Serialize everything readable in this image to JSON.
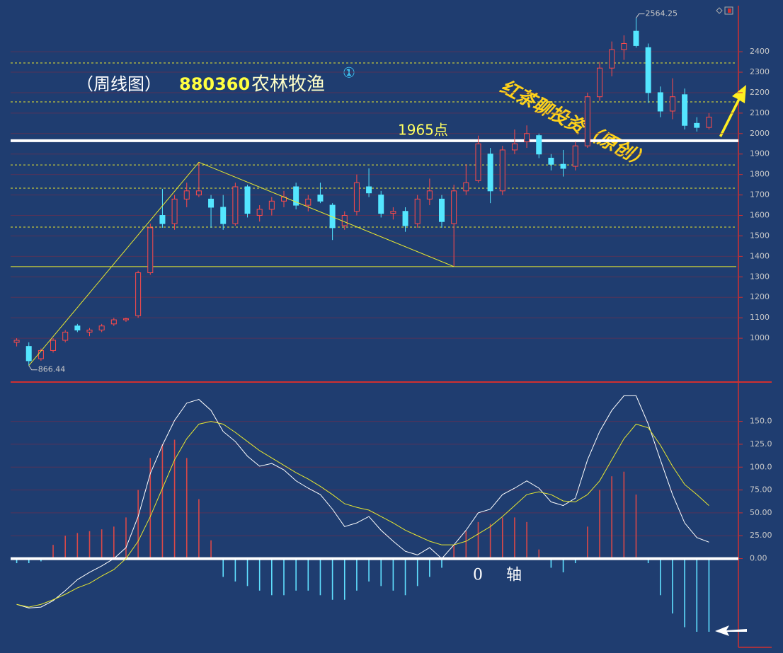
{
  "chart_data": [
    {
      "type": "candlestick",
      "title_prefix": "（周线图）",
      "code": "880360",
      "title": "农林牧渔",
      "marker": "①",
      "annotation": "红茶聊投资（原创）",
      "categories": [
        null,
        null,
        null,
        null,
        null,
        null,
        null,
        null,
        null,
        null,
        null,
        null,
        null,
        null,
        null,
        null,
        null,
        null,
        null,
        null,
        null,
        null,
        null,
        null,
        null,
        null,
        null,
        null,
        null,
        null,
        null,
        null,
        null,
        null,
        null,
        null,
        null,
        null,
        null,
        null,
        null,
        null,
        null,
        null,
        null,
        null,
        null,
        null,
        null,
        null,
        null,
        null,
        null,
        null,
        null,
        null,
        null,
        null
      ],
      "open": [
        980,
        960,
        900,
        940,
        990,
        1060,
        1030,
        1040,
        1070,
        1090,
        1110,
        1320,
        1600,
        1560,
        1680,
        1700,
        1680,
        1640,
        1560,
        1740,
        1600,
        1630,
        1670,
        1740,
        1650,
        1700,
        1650,
        1550,
        1620,
        1740,
        1700,
        1610,
        1620,
        1560,
        1680,
        1680,
        1560,
        1720,
        1770,
        1900,
        1720,
        1920,
        1960,
        1990,
        1880,
        1850,
        1840,
        1940,
        2180,
        2320,
        2410,
        2500,
        2420,
        2200,
        2110,
        2190,
        2050,
        2030
      ],
      "high": [
        1000,
        980,
        950,
        1000,
        1040,
        1070,
        1050,
        1070,
        1100,
        1100,
        1330,
        1560,
        1730,
        1700,
        1760,
        1860,
        1700,
        1700,
        1760,
        1750,
        1650,
        1690,
        1720,
        1760,
        1700,
        1760,
        1660,
        1620,
        1800,
        1830,
        1720,
        1640,
        1640,
        1700,
        1780,
        1700,
        1750,
        1850,
        1990,
        1930,
        1940,
        2020,
        2040,
        2000,
        1900,
        1920,
        1960,
        2200,
        2350,
        2450,
        2480,
        2564.25,
        2440,
        2230,
        2270,
        2220,
        2080,
        2100
      ],
      "low": [
        960,
        866.44,
        890,
        930,
        980,
        1030,
        1010,
        1030,
        1060,
        1080,
        1100,
        1310,
        1540,
        1530,
        1640,
        1690,
        1540,
        1530,
        1550,
        1590,
        1570,
        1600,
        1640,
        1630,
        1620,
        1660,
        1480,
        1530,
        1600,
        1690,
        1590,
        1580,
        1520,
        1540,
        1650,
        1540,
        1350,
        1700,
        1760,
        1660,
        1700,
        1900,
        1930,
        1880,
        1820,
        1790,
        1820,
        1930,
        2160,
        2280,
        2360,
        2420,
        2150,
        2080,
        2070,
        2020,
        2010,
        2020
      ],
      "close": [
        990,
        890,
        940,
        990,
        1030,
        1040,
        1040,
        1060,
        1090,
        1095,
        1320,
        1540,
        1560,
        1680,
        1720,
        1720,
        1640,
        1560,
        1740,
        1610,
        1630,
        1670,
        1690,
        1650,
        1680,
        1670,
        1540,
        1600,
        1760,
        1710,
        1610,
        1620,
        1550,
        1680,
        1720,
        1570,
        1720,
        1760,
        1950,
        1720,
        1920,
        1950,
        2000,
        1900,
        1850,
        1830,
        1940,
        2180,
        2320,
        2410,
        2440,
        2430,
        2200,
        2110,
        2180,
        2040,
        2030,
        2080
      ],
      "up_color": "#ff4a4a",
      "down_color": "#54e6ff",
      "ylim": [
        786,
        2625
      ],
      "yticks": [
        1000,
        1100,
        1200,
        1300,
        1400,
        1500,
        1600,
        1700,
        1800,
        1900,
        2000,
        2100,
        2200,
        2300,
        2400
      ],
      "grid": true,
      "key_level": {
        "value": 1965,
        "label": "1965点"
      },
      "support_level": 1350,
      "dashed_levels": [
        2345,
        2155,
        1847,
        1733,
        1543
      ]
    },
    {
      "type": "macd",
      "axis_label": "0 轴",
      "categories": [
        null,
        null,
        null,
        null,
        null,
        null,
        null,
        null,
        null,
        null,
        null,
        null,
        null,
        null,
        null,
        null,
        null,
        null,
        null,
        null,
        null,
        null,
        null,
        null,
        null,
        null,
        null,
        null,
        null,
        null,
        null,
        null,
        null,
        null,
        null,
        null,
        null,
        null,
        null,
        null,
        null,
        null,
        null,
        null,
        null,
        null,
        null,
        null,
        null,
        null,
        null,
        null,
        null,
        null,
        null,
        null,
        null,
        null
      ],
      "series": [
        {
          "color": "#ffffff",
          "values": [
            -50,
            -54,
            -53,
            -46,
            -35,
            -23,
            -15,
            -8,
            0,
            12,
            46,
            93,
            124,
            151,
            170,
            174,
            162,
            139,
            128,
            112,
            101,
            104,
            97,
            85,
            77,
            70,
            54,
            35,
            39,
            46,
            31,
            19,
            8,
            4,
            12,
            0,
            15,
            31,
            50,
            54,
            70,
            77,
            85,
            77,
            62,
            58,
            66,
            108,
            139,
            162,
            178,
            178,
            147,
            108,
            70,
            39,
            23,
            18
          ]
        },
        {
          "color": "#e8e830",
          "values": [
            -50,
            -53,
            -50,
            -45,
            -39,
            -32,
            -27,
            -19,
            -12,
            0,
            19,
            46,
            77,
            108,
            131,
            147,
            150,
            147,
            138,
            128,
            118,
            110,
            102,
            94,
            87,
            79,
            70,
            60,
            56,
            53,
            46,
            39,
            31,
            25,
            19,
            15,
            15,
            19,
            27,
            35,
            46,
            58,
            70,
            73,
            70,
            63,
            62,
            70,
            85,
            108,
            131,
            147,
            143,
            124,
            101,
            81,
            70,
            58
          ]
        }
      ],
      "bars": {
        "up_color": "#d84848",
        "down_color": "#60e0ff",
        "values": [
          -5,
          -5,
          -3,
          15,
          25,
          28,
          30,
          32,
          35,
          45,
          75,
          110,
          125,
          130,
          110,
          65,
          20,
          -20,
          -25,
          -30,
          -35,
          -40,
          -40,
          -35,
          -35,
          -40,
          -45,
          -45,
          -35,
          -25,
          -30,
          -35,
          -40,
          -30,
          -20,
          -10,
          15,
          30,
          40,
          38,
          45,
          45,
          40,
          10,
          -10,
          -15,
          -5,
          35,
          75,
          90,
          95,
          70,
          -5,
          -40,
          -60,
          -75,
          -80,
          -80
        ]
      },
      "ylim": [
        -97,
        193
      ],
      "yticks": [
        {
          "value": 0,
          "label": "0.00"
        },
        {
          "value": 25,
          "label": "25.00"
        },
        {
          "value": 50,
          "label": "50.00"
        },
        {
          "value": 75,
          "label": "75.00"
        },
        {
          "value": 100,
          "label": "100.0"
        },
        {
          "value": 125,
          "label": "125.0"
        },
        {
          "value": 150,
          "label": "150.0"
        }
      ],
      "grid": true
    }
  ]
}
